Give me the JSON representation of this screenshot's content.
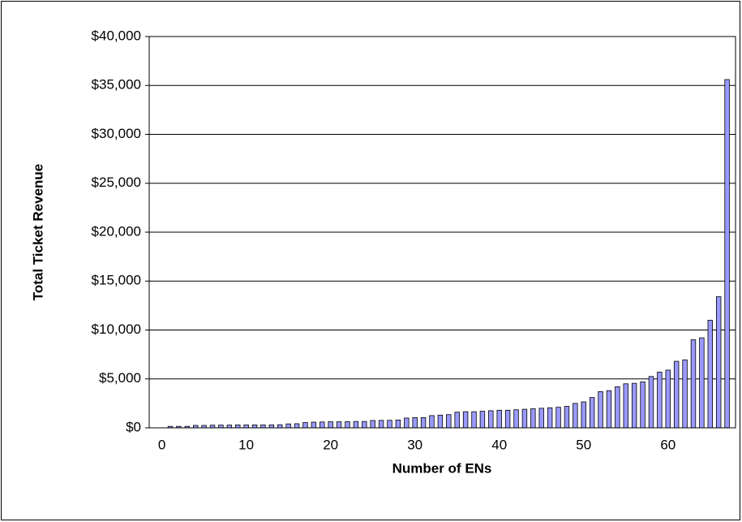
{
  "chart_data": {
    "type": "bar",
    "x_label": "Number of ENs",
    "y_label": "Total Ticket Revenue",
    "x": [
      1,
      2,
      3,
      4,
      5,
      6,
      7,
      8,
      9,
      10,
      11,
      12,
      13,
      14,
      15,
      16,
      17,
      18,
      19,
      20,
      21,
      22,
      23,
      24,
      25,
      26,
      27,
      28,
      29,
      30,
      31,
      32,
      33,
      34,
      35,
      36,
      37,
      38,
      39,
      40,
      41,
      42,
      43,
      44,
      45,
      46,
      47,
      48,
      49,
      50,
      51,
      52,
      53,
      54,
      55,
      56,
      57,
      58,
      59,
      60,
      61,
      62,
      63,
      64,
      65,
      66,
      67
    ],
    "values": [
      150,
      150,
      150,
      250,
      250,
      270,
      280,
      280,
      300,
      300,
      300,
      300,
      300,
      320,
      400,
      420,
      550,
      580,
      600,
      620,
      620,
      630,
      650,
      650,
      750,
      760,
      770,
      800,
      1000,
      1050,
      1050,
      1250,
      1300,
      1350,
      1600,
      1650,
      1650,
      1700,
      1750,
      1800,
      1800,
      1850,
      1900,
      1950,
      2000,
      2050,
      2100,
      2200,
      2500,
      2650,
      3100,
      3700,
      3800,
      4200,
      4500,
      4550,
      4700,
      5250,
      5700,
      5900,
      6800,
      6950,
      9000,
      9200,
      11000,
      13400,
      35600
    ],
    "color": "#9999ff",
    "xlim": [
      -1.5,
      68
    ],
    "xticks": [
      0,
      10,
      20,
      30,
      40,
      50,
      60
    ],
    "ylim": [
      0,
      40000
    ],
    "yticks": [
      {
        "value": 0,
        "label": "$0"
      },
      {
        "value": 5000,
        "label": "$5,000"
      },
      {
        "value": 10000,
        "label": "$10,000"
      },
      {
        "value": 15000,
        "label": "$15,000"
      },
      {
        "value": 20000,
        "label": "$20,000"
      },
      {
        "value": 25000,
        "label": "$25,000"
      },
      {
        "value": 30000,
        "label": "$30,000"
      },
      {
        "value": 35000,
        "label": "$35,000"
      },
      {
        "value": 40000,
        "label": "$40,000"
      }
    ],
    "grid": true
  }
}
